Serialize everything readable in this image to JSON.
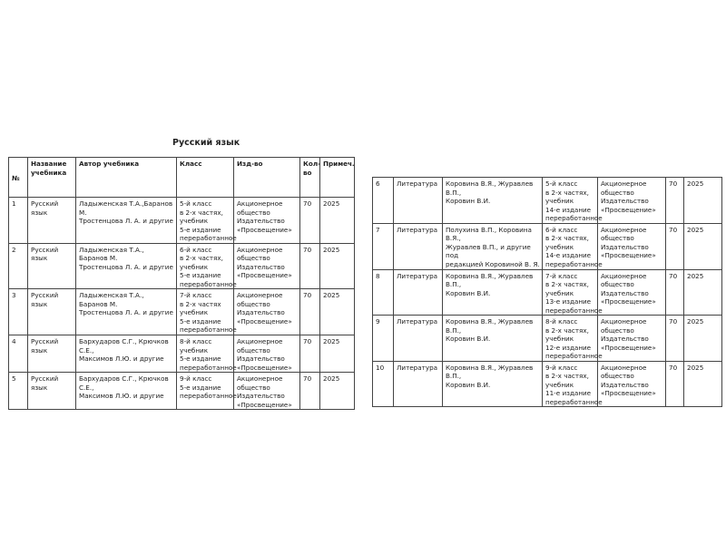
{
  "title": "Русский язык",
  "headers": [
    "№",
    "Название\nучебника",
    "Автор учебника",
    "Класс",
    "Изд-во",
    "Кол-\nво",
    "Примеч."
  ],
  "left_rows": [
    [
      "1",
      "Русский язык",
      "Ладыженская Т.А.,Баранов М.\nТростенцова Л. А. и другие",
      "5-й класс\nв 2-х частях,\n учебник\n5-е издание\nпереработанное",
      "Акционерное\nобщество\nИздательство\n«Просвещение»",
      "70",
      "2025"
    ],
    [
      "2",
      "Русский язык",
      "Ладыженская Т.А., Баранов М.\nТростенцова Л. А. и другие",
      "6-й класс\nв 2-х частях,\nучебник\n5-е издание\nпереработанное",
      "Акционерное\nобщество\nИздательство\n«Просвещение»",
      "70",
      "2025"
    ],
    [
      "3",
      "Русский язык",
      "Ладыженская Т.А., Баранов М.\nТростенцова Л. А. и другие",
      "7-й класс\nв 2-х частях\nучебник\n5-е издание\nпереработанное",
      "Акционерное\nобщество\nИздательство\n«Просвещение»",
      "70",
      "2025"
    ],
    [
      "4",
      "Русский язык",
      "Бархударов С.Г., Крючков С.Е.,\nМаксимов Л.Ю. и другие",
      "8-й класс\nучебник\n5-е издание\nпереработанное",
      "Акционерное\nобщество\nИздательство\n«Просвещение»",
      "70",
      "2025"
    ],
    [
      "5",
      "Русский язык",
      "Бархударов С.Г., Крючков С.Е.,\nМаксимов Л.Ю. и другие",
      "9-й класс\n5-е издание\nпереработанное",
      "Акционерное\nобщество\nИздательство\n«Просвещение»",
      "70",
      "2025"
    ]
  ],
  "right_rows": [
    [
      "6",
      "Литература",
      "Коровина В.Я., Журавлев В.П.,\nКоровин В.И.",
      "5-й класс\nв 2-х частях,\n учебник\n14-е издание\nпереработанное",
      "Акционерное\nобщество\nИздательство\n«Просвещение»",
      "70",
      "2025"
    ],
    [
      "7",
      "Литература",
      "Полухина В.П., Коровина В.Я.,\nЖуравлев В.П., и другие под\nредакцией Коровиной В. Я.",
      "6-й класс\nв 2-х частях,\n учебник\n14-е издание\nпереработанное",
      "Акционерное\nобщество\nИздательство\n«Просвещение»",
      "70",
      "2025"
    ],
    [
      "8",
      "Литература",
      "Коровина В.Я., Журавлев В.П.,\nКоровин В.И.",
      "7-й класс\nв 2-х частях,\n учебник\n13-е издание\nпереработанное",
      "Акционерное\nобщество\nИздательство\n«Просвещение»",
      "70",
      "2025"
    ],
    [
      "9",
      "Литература",
      "Коровина В.Я., Журавлев В.П.,\nКоровин В.И.",
      "8-й класс\nв 2-х частях,\n учебник\n12-е издание\nпереработанное",
      "Акционерное\nобщество\nИздательство\n«Просвещение»",
      "70",
      "2025"
    ],
    [
      "10",
      "Литература",
      "Коровина В.Я., Журавлев В.П.,\nКоровин В.И.",
      "9-й класс\nв 2-х частях,\n учебник\n11-е издание\nпереработанное",
      "Акционерное\nобщество\nИздательство\n«Просвещение»",
      "70",
      "2025"
    ]
  ]
}
